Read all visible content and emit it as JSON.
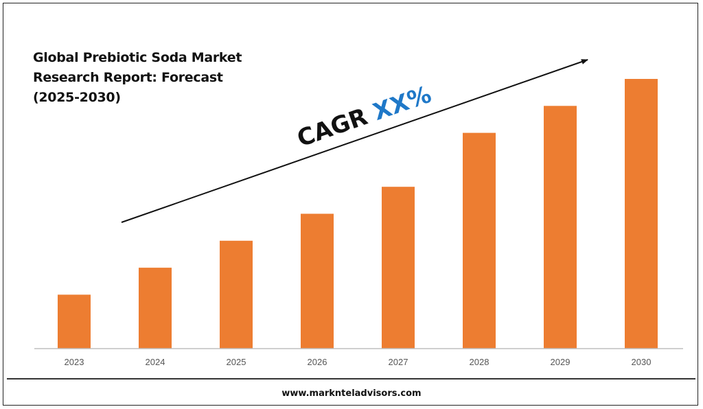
{
  "title_lines": [
    "Global Prebiotic Soda Market",
    "Research Report: Forecast",
    "(2025-2030)"
  ],
  "annotation": {
    "prefix": "CAGR ",
    "value": "XX%",
    "prefix_color": "#111111",
    "value_color": "#1f78c8"
  },
  "footer": {
    "url": "www.marknteladvisors.com"
  },
  "colors": {
    "bar": "#ed7d31",
    "axis": "#bfbfbf",
    "arrow": "#111111"
  },
  "chart_data": {
    "type": "bar",
    "categories": [
      "2023",
      "2024",
      "2025",
      "2026",
      "2027",
      "2028",
      "2029",
      "2030"
    ],
    "values": [
      2,
      3,
      4,
      5,
      6,
      8,
      9,
      10
    ],
    "ylim": [
      0,
      10
    ],
    "grid": false,
    "legend": "none"
  }
}
